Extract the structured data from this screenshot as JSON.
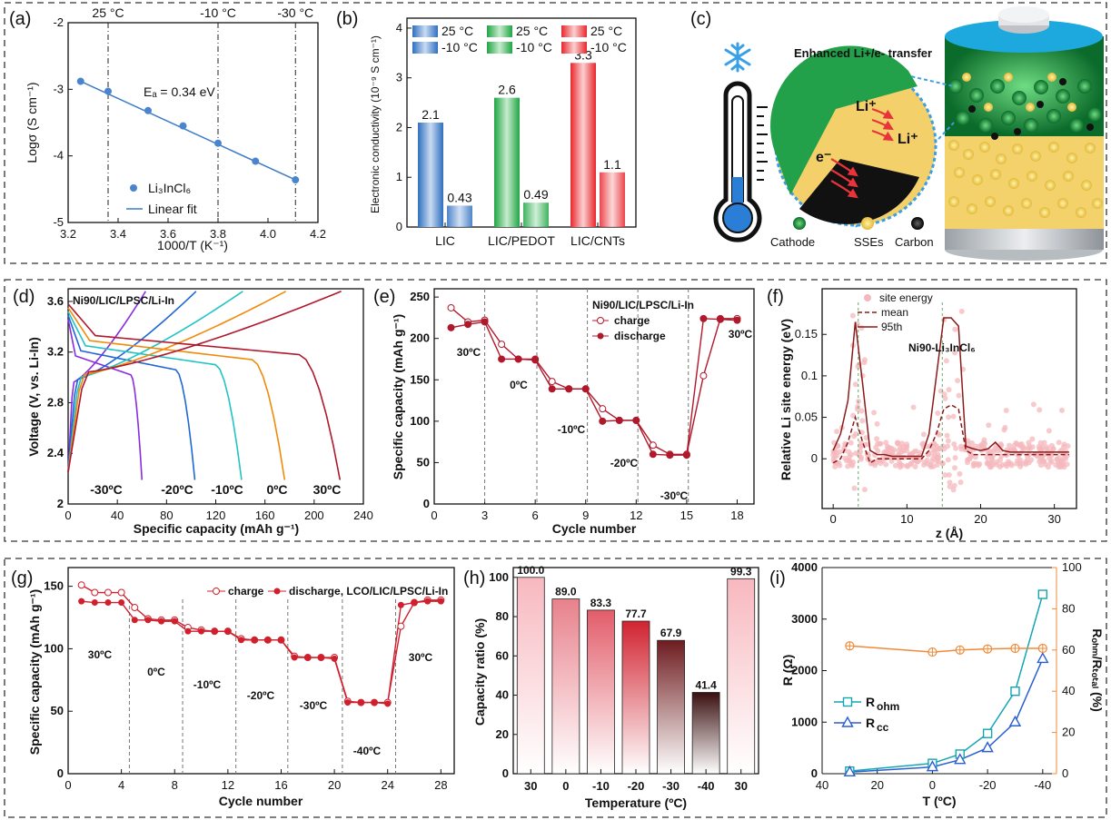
{
  "panel_labels": {
    "a": "(a)",
    "b": "(b)",
    "c": "(c)",
    "d": "(d)",
    "e": "(e)",
    "f": "(f)",
    "g": "(g)",
    "h": "(h)",
    "i": "(i)"
  },
  "chart_data": [
    {
      "id": "a",
      "type": "scatter",
      "xlabel": "1000/T (K⁻¹)",
      "ylabel": "Logσ (S cm⁻¹)",
      "xlim": [
        3.2,
        4.2
      ],
      "ylim": [
        -5,
        -2
      ],
      "xticks": [
        3.2,
        3.4,
        3.6,
        3.8,
        4.0,
        4.2
      ],
      "xtick_labels": [
        "3.2",
        "3.4",
        "3.6",
        "3.8",
        "4.0",
        "4.2"
      ],
      "yticks": [
        -5,
        -4,
        -3,
        -2
      ],
      "ytick_labels": [
        "-5",
        "-4",
        "-3",
        "-2"
      ],
      "x": [
        3.25,
        3.36,
        3.52,
        3.66,
        3.8,
        3.95,
        4.11
      ],
      "y": [
        -2.88,
        -3.03,
        -3.32,
        -3.55,
        -3.81,
        -4.08,
        -4.36
      ],
      "fit": {
        "x": [
          3.25,
          4.11
        ],
        "y": [
          -2.88,
          -4.36
        ]
      },
      "ref_lines": [
        {
          "x": 3.36,
          "label": "25 °C"
        },
        {
          "x": 3.8,
          "label": "-10 °C"
        },
        {
          "x": 4.11,
          "label": "-30 °C"
        }
      ],
      "annotation": "Eₐ = 0.34 eV",
      "legend": [
        "Li₃InCl₆",
        "Linear fit"
      ]
    },
    {
      "id": "b",
      "type": "bar",
      "categories": [
        "LIC",
        "LIC/PEDOT",
        "LIC/CNTs"
      ],
      "series": [
        {
          "name": "25 °C",
          "values": [
            2.1,
            2.6,
            3.3
          ]
        },
        {
          "name": "-10 °C",
          "values": [
            0.43,
            0.49,
            1.1
          ]
        }
      ],
      "value_labels": [
        [
          "2.1",
          "0.43"
        ],
        [
          "2.6",
          "0.49"
        ],
        [
          "3.3",
          "1.1"
        ]
      ],
      "colors": [
        "#2f6fbf",
        "#2eae4f",
        "#e8262c"
      ],
      "ylabel": "Electronic conductivity (10⁻⁹ S cm⁻¹)",
      "ylim": [
        0,
        4.2
      ],
      "yticks": [
        0,
        1,
        2,
        3,
        4
      ],
      "legend": [
        "25 °C",
        "25 °C",
        "25 °C",
        "-10 °C",
        "-10 °C",
        "-10 °C"
      ]
    },
    {
      "id": "d",
      "type": "line",
      "title": "Ni90/LIC/LPSC/Li-In",
      "xlabel": "Specific capacity (mAh g⁻¹)",
      "ylabel": "Voltage (V, vs. Li-In)",
      "xlim": [
        0,
        240
      ],
      "ylim": [
        2.0,
        3.7
      ],
      "xticks": [
        0,
        40,
        80,
        120,
        160,
        200,
        240
      ],
      "yticks": [
        2.0,
        2.4,
        2.8,
        3.2,
        3.6
      ],
      "series": [
        {
          "name": "-30ºC",
          "color": "#8a2be2",
          "discharge_cap": 60,
          "charge_cap": 63
        },
        {
          "name": "-20ºC",
          "color": "#1f67d6",
          "discharge_cap": 103,
          "charge_cap": 104
        },
        {
          "name": "-10ºC",
          "color": "#22c3c3",
          "discharge_cap": 141,
          "charge_cap": 142
        },
        {
          "name": "0ºC",
          "color": "#f08a0b",
          "discharge_cap": 176,
          "charge_cap": 177
        },
        {
          "name": "30ºC",
          "color": "#b0182b",
          "discharge_cap": 221,
          "charge_cap": 222
        }
      ]
    },
    {
      "id": "e",
      "type": "line",
      "title": "Ni90/LIC/LPSC/Li-In",
      "xlabel": "Cycle number",
      "ylabel": "Specific capacity (mAh g⁻¹)",
      "xlim": [
        0,
        19
      ],
      "ylim": [
        0,
        260
      ],
      "xticks": [
        0,
        3,
        6,
        9,
        12,
        15,
        18
      ],
      "yticks": [
        0,
        50,
        100,
        150,
        200,
        250
      ],
      "x": [
        1,
        2,
        3,
        4,
        5,
        6,
        7,
        8,
        9,
        10,
        11,
        12,
        13,
        14,
        15,
        16,
        17,
        18
      ],
      "series": [
        {
          "name": "charge",
          "values": [
            237,
            220,
            222,
            193,
            175,
            175,
            148,
            139,
            139,
            115,
            101,
            101,
            71,
            60,
            60,
            155,
            224,
            224
          ]
        },
        {
          "name": "discharge",
          "values": [
            213,
            217,
            220,
            175,
            175,
            174,
            139,
            139,
            139,
            100,
            101,
            101,
            60,
            59,
            59,
            224,
            223,
            222
          ]
        }
      ],
      "section_lines": [
        3,
        6.1,
        9.1,
        12.1,
        15.1
      ],
      "annotations": [
        "30ºC",
        "0ºC",
        "-10ºC",
        "-20ºC",
        "-30ºC",
        "30ºC"
      ]
    },
    {
      "id": "f",
      "type": "line",
      "xlabel": "z (Å)",
      "ylabel": "Relative Li site energy (eV)",
      "xlim": [
        -1.5,
        33
      ],
      "ylim": [
        -0.06,
        0.205
      ],
      "xticks": [
        0,
        10,
        20,
        30
      ],
      "yticks": [
        0.0,
        0.05,
        0.1,
        0.15
      ],
      "annotation": "Ni90-Li₃InCl₆",
      "legend": [
        "site energy",
        "mean",
        "95th"
      ],
      "x": [
        0,
        1,
        2,
        3,
        4,
        5,
        6,
        7,
        8,
        9,
        10,
        11,
        12,
        13,
        14,
        15,
        16,
        17,
        18,
        19,
        20,
        21,
        22,
        23,
        24,
        25,
        26,
        27,
        28,
        29,
        30,
        31,
        32
      ],
      "series": [
        {
          "name": "95th",
          "values": [
            0.01,
            0.03,
            0.07,
            0.165,
            0.09,
            0.01,
            0.005,
            0.005,
            0.003,
            0.003,
            0.003,
            0.003,
            0.003,
            0.03,
            0.1,
            0.17,
            0.17,
            0.16,
            0.015,
            0.012,
            0.01,
            0.012,
            0.02,
            0.01,
            0.008,
            0.008,
            0.008,
            0.008,
            0.008,
            0.008,
            0.008,
            0.008,
            0.008
          ]
        },
        {
          "name": "mean",
          "values": [
            -0.005,
            0.0,
            0.02,
            0.05,
            0.02,
            -0.005,
            0.0,
            0.0,
            0.0,
            0.0,
            0.0,
            0.0,
            0.0,
            0.01,
            0.03,
            0.06,
            0.065,
            0.06,
            0.01,
            0.005,
            0.005,
            0.005,
            0.005,
            0.005,
            0.005,
            0.005,
            0.005,
            0.005,
            0.005,
            0.005,
            0.005,
            0.005,
            0.005
          ]
        }
      ],
      "vlines": [
        3.4,
        14.8
      ]
    },
    {
      "id": "g",
      "type": "line",
      "xlabel": "Cycle number",
      "ylabel": "Specific capacity (mAh g⁻¹)",
      "xlim": [
        0,
        29
      ],
      "ylim": [
        0,
        165
      ],
      "xticks": [
        0,
        4,
        8,
        12,
        16,
        20,
        24,
        28
      ],
      "yticks": [
        0,
        50,
        100,
        150
      ],
      "legend_text": "charge",
      "legend_text2": "discharge, LCO/LIC/LPSC/Li-In",
      "x": [
        1,
        2,
        3,
        4,
        5,
        6,
        7,
        8,
        9,
        10,
        11,
        12,
        13,
        14,
        15,
        16,
        17,
        18,
        19,
        20,
        21,
        22,
        23,
        24,
        25,
        26,
        27,
        28
      ],
      "series": [
        {
          "name": "charge",
          "values": [
            151,
            145,
            145,
            145,
            133,
            124,
            123,
            123,
            117,
            115,
            114,
            114,
            108,
            107,
            107,
            107,
            94,
            93,
            93,
            93,
            58,
            57,
            57,
            57,
            118,
            137,
            139,
            139
          ]
        },
        {
          "name": "discharge",
          "values": [
            138,
            137,
            137,
            137,
            123,
            123,
            122,
            122,
            114,
            114,
            114,
            114,
            107,
            107,
            107,
            107,
            93,
            93,
            93,
            92,
            57,
            57,
            57,
            56,
            135,
            137,
            138,
            138
          ]
        }
      ],
      "section_lines": [
        4.6,
        8.6,
        12.6,
        16.5,
        20.6,
        24.6
      ],
      "annotations": [
        "30ºC",
        "0ºC",
        "-10ºC",
        "-20ºC",
        "-30ºC",
        "-40ºC",
        "30ºC"
      ]
    },
    {
      "id": "h",
      "type": "bar",
      "xlabel": "Temperature (ºC)",
      "ylabel": "Capacity ratio (%)",
      "ylim": [
        0,
        105
      ],
      "yticks": [
        0,
        20,
        40,
        60,
        80,
        100
      ],
      "categories": [
        "30",
        "0",
        "-10",
        "-20",
        "-30",
        "-40",
        "30"
      ],
      "values": [
        100.0,
        89.0,
        83.3,
        77.7,
        67.9,
        41.4,
        99.3
      ],
      "value_labels": [
        "100.0",
        "89.0",
        "83.3",
        "77.7",
        "67.9",
        "41.4",
        "99.3"
      ],
      "top_colors": [
        "#f7b8bf",
        "#e8818b",
        "#e25d6a",
        "#d12331",
        "#6e1c1f",
        "#3a0f10",
        "#f7b8bf"
      ]
    },
    {
      "id": "i",
      "type": "line",
      "xlabel": "T (ºC)",
      "ylabel": "R (Ω)",
      "ylabel2": "Rₒₕₘ/Rₜₒₜₐₗ (%)",
      "xlim": [
        40,
        -45
      ],
      "ylim": [
        0,
        4000
      ],
      "ylim2": [
        0,
        100
      ],
      "xticks": [
        40,
        20,
        0,
        -20,
        -40
      ],
      "xtick_labels": [
        "40",
        "20",
        "0",
        "-20",
        "-40"
      ],
      "yticks": [
        0,
        1000,
        2000,
        3000,
        4000
      ],
      "yticks2": [
        0,
        20,
        40,
        60,
        80,
        100
      ],
      "x": [
        30,
        0,
        -10,
        -20,
        -30,
        -40
      ],
      "series": [
        {
          "name": "R_ohm",
          "values": [
            50,
            200,
            380,
            780,
            1600,
            3480
          ],
          "color": "#14a5b3"
        },
        {
          "name": "R_cc",
          "values": [
            30,
            130,
            270,
            500,
            1000,
            2230
          ],
          "color": "#2a5fd0"
        },
        {
          "name": "ratio",
          "values": [
            62,
            59,
            60,
            60.5,
            60.8,
            60.8
          ],
          "color": "#f08a37",
          "axis": "right"
        }
      ],
      "legend": [
        "R",
        "ohm",
        "R",
        "cc"
      ]
    }
  ],
  "panel_c": {
    "banner": "Enhanced Li+/e- transfer",
    "legend": [
      "Cathode",
      "SSEs",
      "Carbon"
    ],
    "ions": [
      "Li⁺",
      "Li⁺",
      "e⁻",
      "e⁻"
    ]
  }
}
